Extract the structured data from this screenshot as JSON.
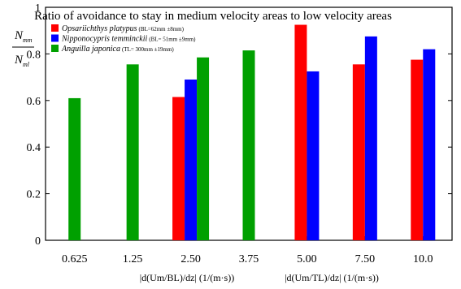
{
  "chart_data": {
    "type": "bar",
    "title": "Ratio of avoidance to stay in medium velocity areas to low velocity areas",
    "ylabel_numerator": "N",
    "ylabel_numerator_sub": "mm",
    "ylabel_denominator": "N",
    "ylabel_denominator_sub": "ml",
    "ylim": [
      0,
      1
    ],
    "yticks": [
      "0",
      "0.2",
      "0.4",
      "0.6",
      "0.8",
      "1"
    ],
    "categories": [
      "0.625",
      "1.25",
      "2.50",
      "3.75",
      "5.00",
      "7.50",
      "10.0"
    ],
    "xlabel_left": "|d(Um/BL)/dz| (1/(m·s))",
    "xlabel_right": "|d(Um/TL)/dz| (1/(m·s))",
    "legend_position": "top-left",
    "series": [
      {
        "name": "Opsariichthys platypus",
        "size_label": "(BL=62mm ±8mm)",
        "color": "#ff0000",
        "values": [
          null,
          null,
          0.615,
          null,
          0.925,
          0.755,
          0.775
        ]
      },
      {
        "name": "Nipponocypris temminckii",
        "size_label": "(BL= 51mm ±9mm)",
        "color": "#0000ff",
        "values": [
          null,
          null,
          0.69,
          null,
          0.725,
          0.875,
          0.82
        ]
      },
      {
        "name": "Anguilla japonica",
        "size_label": "(TL= 300mm ±19mm)",
        "color": "#00a000",
        "values": [
          0.61,
          0.755,
          0.785,
          0.815,
          null,
          null,
          null
        ]
      }
    ]
  }
}
